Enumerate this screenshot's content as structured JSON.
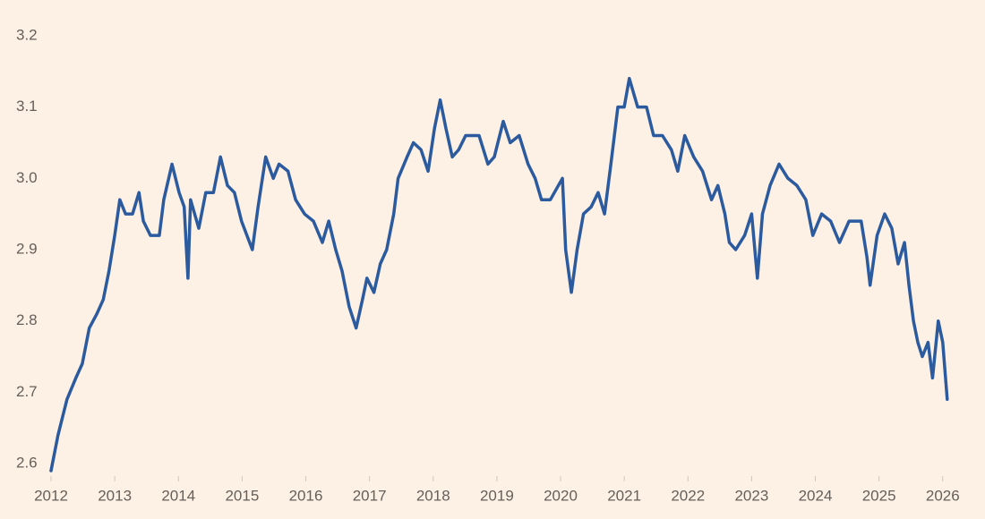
{
  "chart_data": {
    "type": "line",
    "color": "#2b5a9e",
    "x": [
      2012.0,
      2012.11,
      2012.25,
      2012.39,
      2012.49,
      2012.6,
      2012.72,
      2012.82,
      2012.91,
      2013.0,
      2013.08,
      2013.17,
      2013.28,
      2013.38,
      2013.45,
      2013.56,
      2013.7,
      2013.77,
      2013.9,
      2014.01,
      2014.09,
      2014.15,
      2014.19,
      2014.32,
      2014.43,
      2014.55,
      2014.66,
      2014.77,
      2014.88,
      2014.99,
      2015.16,
      2015.25,
      2015.37,
      2015.49,
      2015.58,
      2015.72,
      2015.84,
      2015.98,
      2016.12,
      2016.26,
      2016.36,
      2016.47,
      2016.57,
      2016.68,
      2016.79,
      2016.89,
      2016.96,
      2017.07,
      2017.17,
      2017.27,
      2017.38,
      2017.45,
      2017.59,
      2017.69,
      2017.81,
      2017.92,
      2018.02,
      2018.11,
      2018.2,
      2018.3,
      2018.4,
      2018.51,
      2018.72,
      2018.86,
      2018.96,
      2019.1,
      2019.21,
      2019.35,
      2019.49,
      2019.6,
      2019.7,
      2019.84,
      2020.03,
      2020.08,
      2020.17,
      2020.26,
      2020.36,
      2020.48,
      2020.59,
      2020.69,
      2020.79,
      2020.9,
      2021.0,
      2021.08,
      2021.21,
      2021.35,
      2021.46,
      2021.6,
      2021.74,
      2021.84,
      2021.95,
      2022.09,
      2022.23,
      2022.37,
      2022.47,
      2022.58,
      2022.65,
      2022.75,
      2022.89,
      2023.0,
      2023.09,
      2023.17,
      2023.29,
      2023.43,
      2023.57,
      2023.71,
      2023.85,
      2023.96,
      2024.1,
      2024.24,
      2024.38,
      2024.53,
      2024.72,
      2024.81,
      2024.86,
      2024.97,
      2025.09,
      2025.2,
      2025.3,
      2025.4,
      2025.47,
      2025.54,
      2025.61,
      2025.68,
      2025.77,
      2025.84,
      2025.93,
      2026.0,
      2026.07
    ],
    "values": [
      2.59,
      2.64,
      2.69,
      2.72,
      2.74,
      2.79,
      2.81,
      2.83,
      2.87,
      2.92,
      2.97,
      2.95,
      2.95,
      2.98,
      2.94,
      2.92,
      2.92,
      2.97,
      3.02,
      2.98,
      2.96,
      2.86,
      2.97,
      2.93,
      2.98,
      2.98,
      3.03,
      2.99,
      2.98,
      2.94,
      2.9,
      2.96,
      3.03,
      3.0,
      3.02,
      3.01,
      2.97,
      2.95,
      2.94,
      2.91,
      2.94,
      2.9,
      2.87,
      2.82,
      2.79,
      2.83,
      2.86,
      2.84,
      2.88,
      2.9,
      2.95,
      3.0,
      3.03,
      3.05,
      3.04,
      3.01,
      3.07,
      3.11,
      3.07,
      3.03,
      3.04,
      3.06,
      3.06,
      3.02,
      3.03,
      3.08,
      3.05,
      3.06,
      3.02,
      3.0,
      2.97,
      2.97,
      3.0,
      2.9,
      2.84,
      2.9,
      2.95,
      2.96,
      2.98,
      2.95,
      3.02,
      3.1,
      3.1,
      3.14,
      3.1,
      3.1,
      3.06,
      3.06,
      3.04,
      3.01,
      3.06,
      3.03,
      3.01,
      2.97,
      2.99,
      2.95,
      2.91,
      2.9,
      2.92,
      2.95,
      2.86,
      2.95,
      2.99,
      3.02,
      3.0,
      2.99,
      2.97,
      2.92,
      2.95,
      2.94,
      2.91,
      2.94,
      2.94,
      2.89,
      2.85,
      2.92,
      2.95,
      2.93,
      2.88,
      2.91,
      2.85,
      2.8,
      2.77,
      2.75,
      2.77,
      2.72,
      2.8,
      2.77,
      2.69
    ],
    "xlim": [
      2012,
      2026.2
    ],
    "xticks": [
      2012,
      2013,
      2014,
      2015,
      2016,
      2017,
      2018,
      2019,
      2020,
      2021,
      2022,
      2023,
      2024,
      2025,
      2026
    ],
    "ylim": [
      2.585,
      3.22
    ],
    "yticks": [
      2.6,
      2.7,
      2.8,
      2.9,
      {
        "value": 3.0,
        "label": "3.0"
      },
      3.1,
      3.2
    ]
  }
}
